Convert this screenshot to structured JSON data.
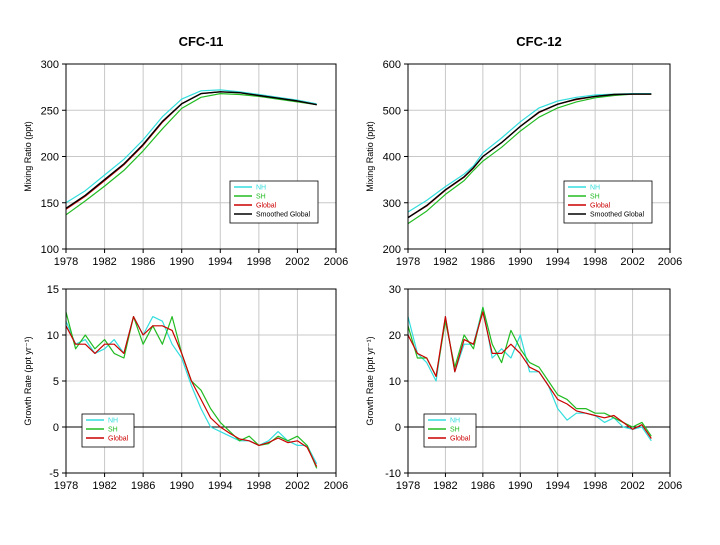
{
  "colors": {
    "nh": "#33dddd",
    "sh": "#22bb22",
    "global": "#cc0000",
    "smoothed": "#000000"
  },
  "chart_data": [
    {
      "type": "line",
      "title": "CFC-11",
      "ylabel": "Mixing Ratio (ppt)",
      "xlim": [
        1978,
        2006
      ],
      "ylim": [
        100,
        300
      ],
      "xticks": [
        "1978",
        "1982",
        "1986",
        "1990",
        "1994",
        "1998",
        "2002",
        "2006"
      ],
      "yticks": [
        "100",
        "150",
        "200",
        "250",
        "300"
      ],
      "legend": "bottom-right",
      "series": [
        {
          "name": "NH",
          "key": "nh",
          "x": [
            1978,
            1980,
            1982,
            1984,
            1986,
            1988,
            1990,
            1992,
            1994,
            1996,
            1998,
            2000,
            2002,
            2004
          ],
          "y": [
            150,
            163,
            180,
            197,
            218,
            243,
            262,
            271,
            272,
            270,
            267,
            264,
            261,
            257
          ]
        },
        {
          "name": "SH",
          "key": "sh",
          "x": [
            1978,
            1980,
            1982,
            1984,
            1986,
            1988,
            1990,
            1992,
            1994,
            1996,
            1998,
            2000,
            2002,
            2004
          ],
          "y": [
            137,
            152,
            168,
            185,
            206,
            230,
            252,
            264,
            268,
            267,
            265,
            262,
            259,
            256
          ]
        },
        {
          "name": "Global",
          "key": "global",
          "x": [
            1978,
            1980,
            1982,
            1984,
            1986,
            1988,
            1990,
            1992,
            1994,
            1996,
            1998,
            2000,
            2002,
            2004
          ],
          "y": [
            143,
            157,
            174,
            191,
            212,
            237,
            257,
            268,
            270,
            269,
            266,
            263,
            260,
            256
          ]
        },
        {
          "name": "Smoothed Global",
          "key": "smoothed",
          "x": [
            1978,
            1980,
            1982,
            1984,
            1986,
            1988,
            1990,
            1992,
            1994,
            1996,
            1998,
            2000,
            2002,
            2004
          ],
          "y": [
            144,
            158,
            175,
            192,
            213,
            238,
            257,
            268,
            270,
            269,
            266,
            263,
            260,
            256
          ]
        }
      ]
    },
    {
      "type": "line",
      "title": "CFC-12",
      "ylabel": "Mixing Ratio (ppt)",
      "xlim": [
        1978,
        2006
      ],
      "ylim": [
        200,
        600
      ],
      "xticks": [
        "1978",
        "1982",
        "1986",
        "1990",
        "1994",
        "1998",
        "2002",
        "2006"
      ],
      "yticks": [
        "200",
        "300",
        "400",
        "500",
        "600"
      ],
      "legend": "bottom-right",
      "series": [
        {
          "name": "NH",
          "key": "nh",
          "x": [
            1978,
            1980,
            1982,
            1984,
            1985,
            1986,
            1988,
            1990,
            1992,
            1994,
            1996,
            1998,
            2000,
            2002,
            2004
          ],
          "y": [
            280,
            305,
            335,
            362,
            380,
            408,
            440,
            475,
            505,
            520,
            528,
            533,
            535,
            536,
            536
          ]
        },
        {
          "name": "SH",
          "key": "sh",
          "x": [
            1978,
            1980,
            1982,
            1984,
            1985,
            1986,
            1988,
            1990,
            1992,
            1994,
            1996,
            1998,
            2000,
            2002,
            2004
          ],
          "y": [
            255,
            282,
            318,
            348,
            370,
            390,
            420,
            455,
            485,
            505,
            518,
            527,
            532,
            535,
            535
          ]
        },
        {
          "name": "Global",
          "key": "global",
          "x": [
            1978,
            1980,
            1982,
            1984,
            1985,
            1986,
            1988,
            1990,
            1992,
            1994,
            1996,
            1998,
            2000,
            2002,
            2004
          ],
          "y": [
            268,
            293,
            327,
            355,
            375,
            400,
            430,
            465,
            495,
            513,
            523,
            530,
            534,
            535,
            535
          ]
        },
        {
          "name": "Smoothed Global",
          "key": "smoothed",
          "x": [
            1978,
            1980,
            1982,
            1984,
            1985,
            1986,
            1988,
            1990,
            1992,
            1994,
            1996,
            1998,
            2000,
            2002,
            2004
          ],
          "y": [
            268,
            294,
            328,
            356,
            376,
            400,
            430,
            465,
            496,
            513,
            524,
            530,
            534,
            535,
            535
          ]
        }
      ]
    },
    {
      "type": "line",
      "title": "",
      "ylabel": "Growth Rate (ppt yr⁻¹)",
      "xlim": [
        1978,
        2006
      ],
      "ylim": [
        -5,
        15
      ],
      "xticks": [
        "1978",
        "1982",
        "1986",
        "1990",
        "1994",
        "1998",
        "2002",
        "2006"
      ],
      "yticks": [
        "-5",
        "0",
        "5",
        "10",
        "15"
      ],
      "zero_line": 0,
      "legend": "bottom-left",
      "series": [
        {
          "name": "NH",
          "key": "nh",
          "x": [
            1978,
            1979,
            1980,
            1981,
            1982,
            1983,
            1984,
            1985,
            1986,
            1987,
            1988,
            1989,
            1990,
            1991,
            1992,
            1993,
            1994,
            1995,
            1996,
            1997,
            1998,
            1999,
            2000,
            2001,
            2002,
            2003,
            2004
          ],
          "y": [
            11.5,
            9,
            9.5,
            8,
            8.5,
            9.5,
            8,
            12,
            10,
            12,
            11.5,
            9,
            7.5,
            4.5,
            2,
            0,
            -0.5,
            -1,
            -1.5,
            -1.5,
            -2,
            -1.5,
            -0.5,
            -1.5,
            -2,
            -2,
            -4
          ]
        },
        {
          "name": "SH",
          "key": "sh",
          "x": [
            1978,
            1979,
            1980,
            1981,
            1982,
            1983,
            1984,
            1985,
            1986,
            1987,
            1988,
            1989,
            1990,
            1991,
            1992,
            1993,
            1994,
            1995,
            1996,
            1997,
            1998,
            1999,
            2000,
            2001,
            2002,
            2003,
            2004
          ],
          "y": [
            12.5,
            8.5,
            10,
            8.5,
            9.5,
            8,
            7.5,
            12,
            9,
            11,
            9,
            12,
            8,
            5,
            4,
            2,
            0.5,
            -0.5,
            -1.5,
            -1,
            -2,
            -1.8,
            -1,
            -1.5,
            -1,
            -2,
            -4.5
          ]
        },
        {
          "name": "Global",
          "key": "global",
          "x": [
            1978,
            1979,
            1980,
            1981,
            1982,
            1983,
            1984,
            1985,
            1986,
            1987,
            1988,
            1989,
            1990,
            1991,
            1992,
            1993,
            1994,
            1995,
            1996,
            1997,
            1998,
            1999,
            2000,
            2001,
            2002,
            2003,
            2004
          ],
          "y": [
            11,
            9,
            9,
            8,
            9,
            9,
            8,
            12,
            10,
            11,
            11,
            10.5,
            8,
            5,
            3,
            1,
            0,
            -0.7,
            -1.3,
            -1.5,
            -2,
            -1.7,
            -1.2,
            -1.7,
            -1.5,
            -2.2,
            -4.3
          ]
        }
      ]
    },
    {
      "type": "line",
      "title": "",
      "ylabel": "Growth Rate (ppt yr⁻¹)",
      "xlim": [
        1978,
        2006
      ],
      "ylim": [
        -10,
        30
      ],
      "xticks": [
        "1978",
        "1982",
        "1986",
        "1990",
        "1994",
        "1998",
        "2002",
        "2006"
      ],
      "yticks": [
        "-10",
        "0",
        "10",
        "20",
        "30"
      ],
      "zero_line": 0,
      "legend": "bottom-left",
      "series": [
        {
          "name": "NH",
          "key": "nh",
          "x": [
            1978,
            1979,
            1980,
            1981,
            1982,
            1983,
            1984,
            1985,
            1986,
            1987,
            1988,
            1989,
            1990,
            1991,
            1992,
            1993,
            1994,
            1995,
            1996,
            1997,
            1998,
            1999,
            2000,
            2001,
            2002,
            2003,
            2004
          ],
          "y": [
            24,
            16,
            14,
            10,
            24,
            12,
            18,
            18,
            26,
            15,
            17,
            15,
            20,
            12,
            12,
            9,
            4,
            1.5,
            3,
            3,
            2.5,
            1,
            2,
            0,
            -0.5,
            0,
            -3
          ]
        },
        {
          "name": "SH",
          "key": "sh",
          "x": [
            1978,
            1979,
            1980,
            1981,
            1982,
            1983,
            1984,
            1985,
            1986,
            1987,
            1988,
            1989,
            1990,
            1991,
            1992,
            1993,
            1994,
            1995,
            1996,
            1997,
            1998,
            1999,
            2000,
            2001,
            2002,
            2003,
            2004
          ],
          "y": [
            22,
            15,
            15,
            11,
            23,
            13,
            20,
            17,
            26,
            18,
            14,
            21,
            17,
            14,
            13,
            10,
            7,
            6,
            4,
            4,
            3,
            3,
            2,
            1,
            0,
            1,
            -2
          ]
        },
        {
          "name": "Global",
          "key": "global",
          "x": [
            1978,
            1979,
            1980,
            1981,
            1982,
            1983,
            1984,
            1985,
            1986,
            1987,
            1988,
            1989,
            1990,
            1991,
            1992,
            1993,
            1994,
            1995,
            1996,
            1997,
            1998,
            1999,
            2000,
            2001,
            2002,
            2003,
            2004
          ],
          "y": [
            20,
            16,
            15,
            11,
            24,
            12,
            19,
            18,
            25,
            16,
            16,
            18,
            16,
            13,
            12,
            9,
            6,
            5,
            3.5,
            3,
            2.5,
            2,
            2.5,
            1,
            -0.5,
            0.5,
            -2.5
          ]
        }
      ]
    }
  ]
}
